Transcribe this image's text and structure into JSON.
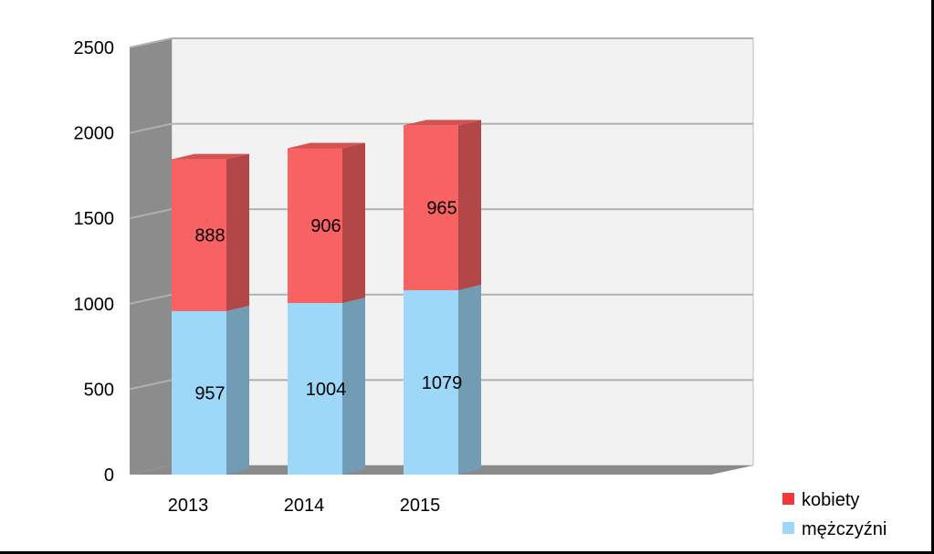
{
  "chart_data": {
    "type": "bar",
    "stacked": true,
    "three_d": true,
    "title": "",
    "xlabel": "",
    "ylabel": "",
    "categories": [
      "2013",
      "2014",
      "2015"
    ],
    "series": [
      {
        "name": "mężczyźni",
        "values": [
          957,
          1004,
          1079
        ],
        "color": "#9dd8f8"
      },
      {
        "name": "kobiety",
        "values": [
          888,
          906,
          965
        ],
        "color": "#f86262"
      }
    ],
    "ylim": [
      0,
      2500
    ],
    "yticks": [
      "0",
      "500",
      "1000",
      "1500",
      "2000",
      "2500"
    ],
    "grid": true,
    "legend_position": "bottom-right"
  }
}
